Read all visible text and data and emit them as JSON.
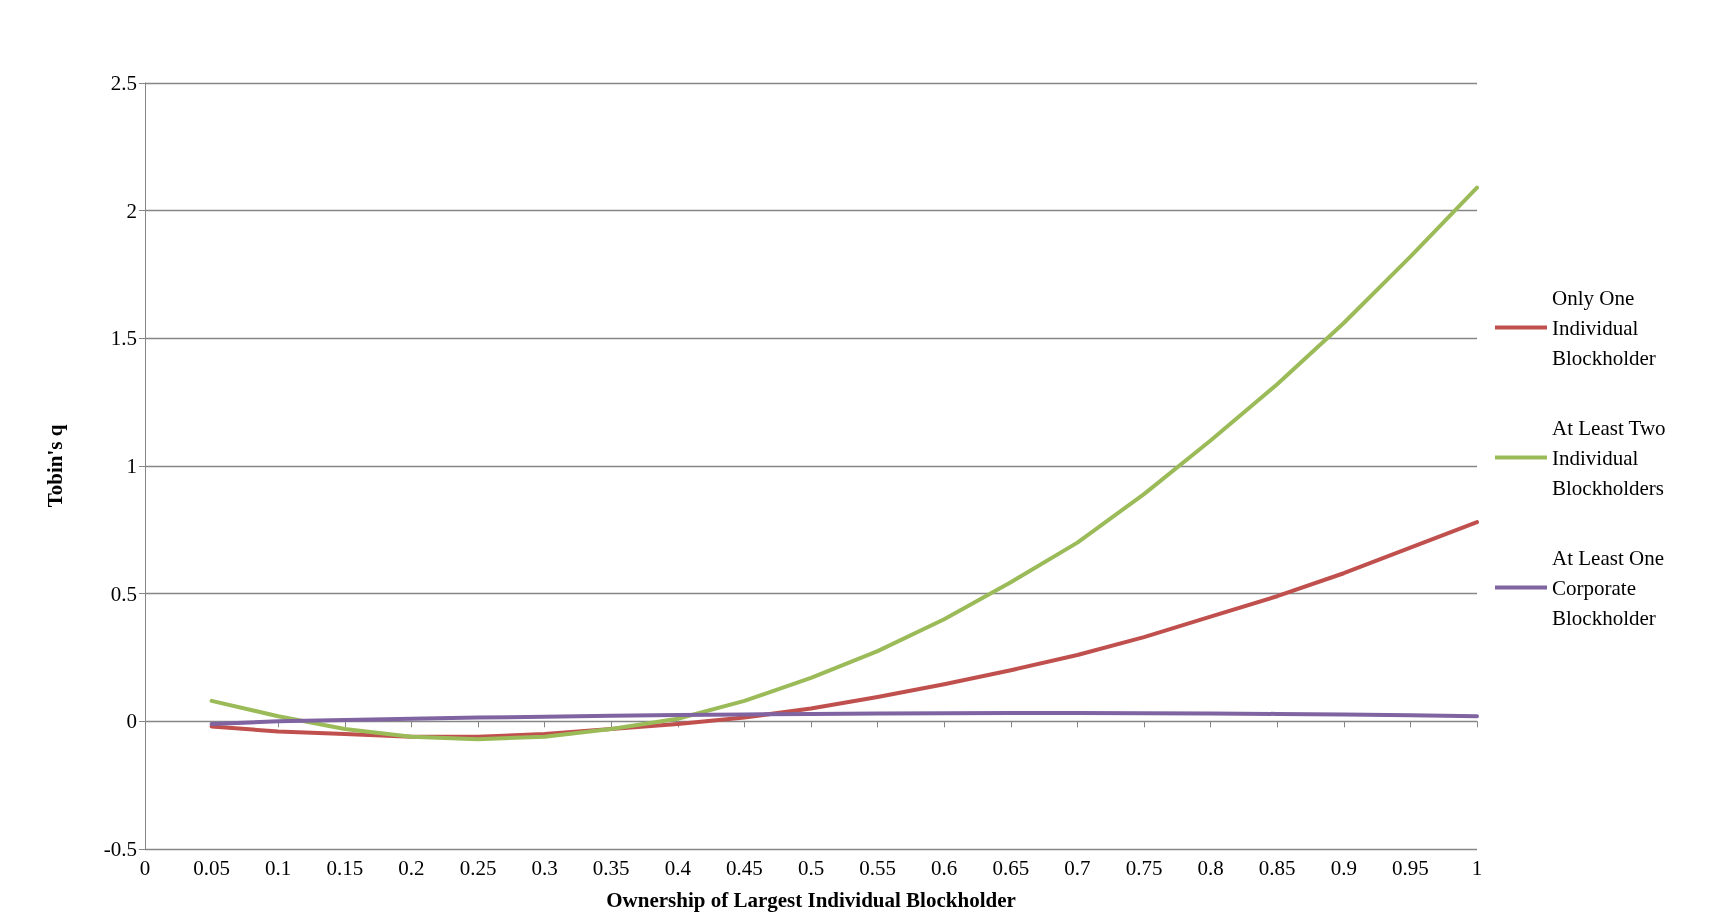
{
  "chart_data": {
    "type": "line",
    "xlabel": "Ownership of Largest Individual Blockholder",
    "ylabel": "Tobin's q",
    "x": [
      0.05,
      0.1,
      0.15,
      0.2,
      0.25,
      0.3,
      0.35,
      0.4,
      0.45,
      0.5,
      0.55,
      0.6,
      0.65,
      0.7,
      0.75,
      0.8,
      0.85,
      0.9,
      0.95,
      1
    ],
    "series": [
      {
        "name": "Only One Individual Blockholder",
        "color": "#c0504d",
        "values": [
          -0.02,
          -0.04,
          -0.05,
          -0.06,
          -0.06,
          -0.05,
          -0.03,
          -0.01,
          0.015,
          0.05,
          0.095,
          0.145,
          0.2,
          0.26,
          0.33,
          0.41,
          0.49,
          0.58,
          0.68,
          0.78
        ]
      },
      {
        "name": "At Least Two Individual Blockholders",
        "color": "#9bbb59",
        "values": [
          0.08,
          0.02,
          -0.03,
          -0.06,
          -0.07,
          -0.06,
          -0.03,
          0.01,
          0.08,
          0.17,
          0.275,
          0.4,
          0.545,
          0.7,
          0.89,
          1.1,
          1.32,
          1.56,
          1.82,
          2.09
        ]
      },
      {
        "name": "At Least One Corporate Blockholder",
        "color": "#8064a2",
        "values": [
          -0.01,
          0.0,
          0.005,
          0.01,
          0.015,
          0.018,
          0.022,
          0.025,
          0.027,
          0.029,
          0.031,
          0.032,
          0.033,
          0.033,
          0.032,
          0.031,
          0.029,
          0.027,
          0.024,
          0.02
        ]
      }
    ],
    "xlim": [
      0,
      1
    ],
    "xticks": [
      0,
      0.05,
      0.1,
      0.15,
      0.2,
      0.25,
      0.3,
      0.35,
      0.4,
      0.45,
      0.5,
      0.55,
      0.6,
      0.65,
      0.7,
      0.75,
      0.8,
      0.85,
      0.9,
      0.95,
      1
    ],
    "ylim": [
      -0.5,
      2.5
    ],
    "yticks": [
      -0.5,
      0,
      0.5,
      1,
      1.5,
      2,
      2.5
    ],
    "grid": "y",
    "legend": "right",
    "marker": "none",
    "line_style": "solid"
  }
}
